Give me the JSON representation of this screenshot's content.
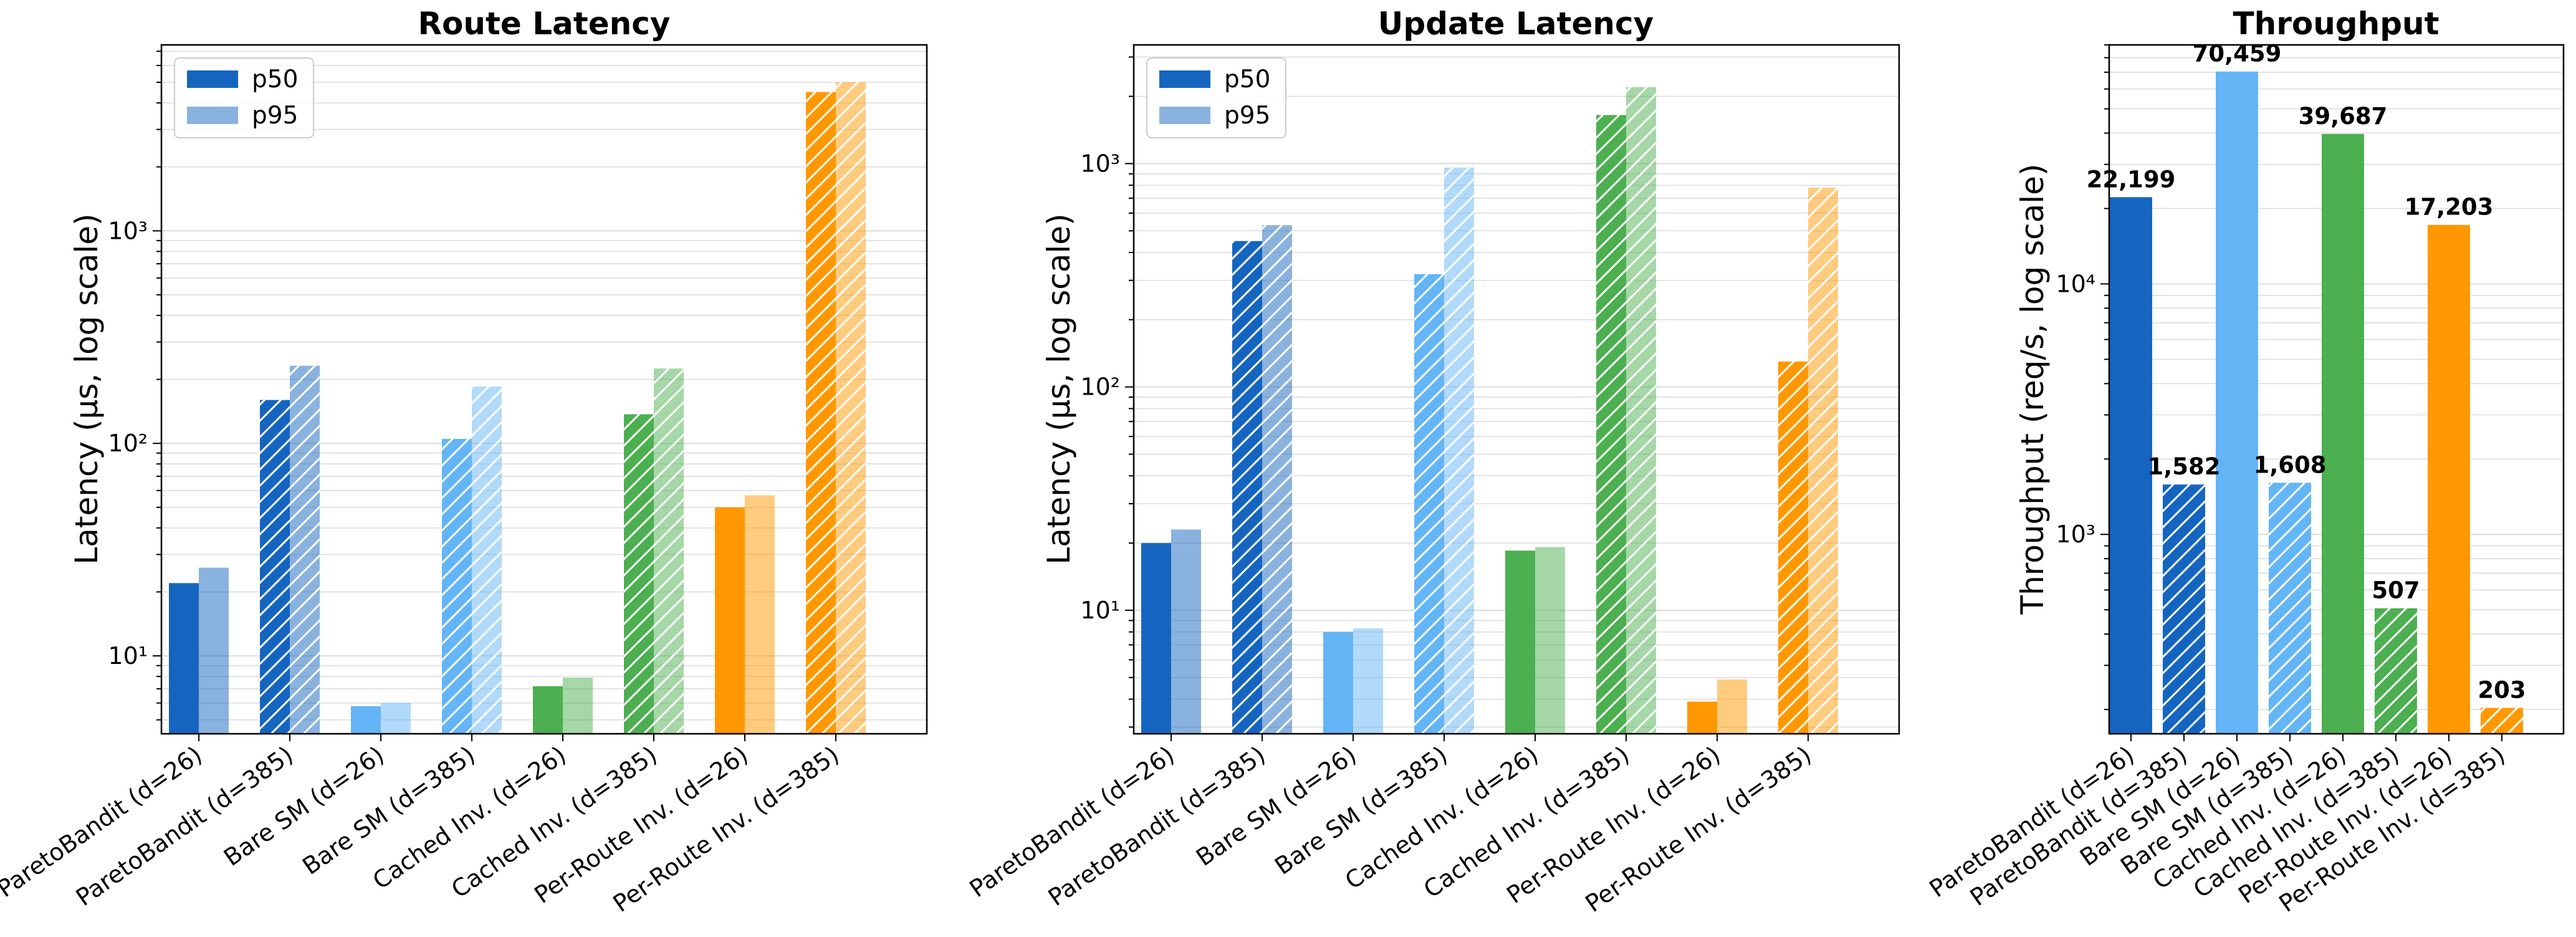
{
  "colors": {
    "paretobandit": "#1565c0",
    "bare_sm": "#64b5f6",
    "cached_inv": "#4caf50",
    "per_route_inv": "#ff9800",
    "grid": "#dddddd",
    "hatch": "#ffffff"
  },
  "legend": {
    "p50": "p50",
    "p95": "p95"
  },
  "categories": [
    "ParetoBandit (d=26)",
    "ParetoBandit (d=385)",
    "Bare SM (d=26)",
    "Bare SM (d=385)",
    "Cached Inv. (d=26)",
    "Cached Inv. (d=385)",
    "Per-Route Inv. (d=26)",
    "Per-Route Inv. (d=385)"
  ],
  "chart_data": [
    {
      "type": "bar",
      "title": "Route Latency",
      "ylabel": "Latency (μs, log scale)",
      "yscale": "log",
      "ylim": [
        4.3,
        7500
      ],
      "grid": true,
      "legend_position": "top-left",
      "yticks": [
        10,
        100,
        1000
      ],
      "series": [
        {
          "name": "p50",
          "values": [
            22,
            160,
            5.8,
            105,
            7.2,
            137,
            50,
            4500
          ]
        },
        {
          "name": "p95",
          "values": [
            26,
            232,
            6.0,
            185,
            7.9,
            225,
            57,
            5000
          ]
        }
      ]
    },
    {
      "type": "bar",
      "title": "Update Latency",
      "ylabel": "Latency (μs, log scale)",
      "yscale": "log",
      "ylim": [
        2.8,
        3400
      ],
      "grid": true,
      "legend_position": "top-left",
      "yticks": [
        10,
        100,
        1000
      ],
      "series": [
        {
          "name": "p50",
          "values": [
            20,
            450,
            8.0,
            320,
            18.5,
            1650,
            3.9,
            130
          ]
        },
        {
          "name": "p95",
          "values": [
            23,
            530,
            8.3,
            960,
            19.2,
            2200,
            4.9,
            780
          ]
        }
      ]
    },
    {
      "type": "bar",
      "title": "Throughput",
      "ylabel": "Throughput (req/s, log scale)",
      "yscale": "log",
      "ylim": [
        160,
        90000
      ],
      "grid": true,
      "yticks": [
        1000,
        10000
      ],
      "series": [
        {
          "values": [
            22199,
            1582,
            70459,
            1608,
            39687,
            507,
            17203,
            203
          ]
        }
      ],
      "data_labels": [
        "22,199",
        "1,582",
        "70,459",
        "1,608",
        "39,687",
        "507",
        "17,203",
        "203"
      ]
    }
  ]
}
